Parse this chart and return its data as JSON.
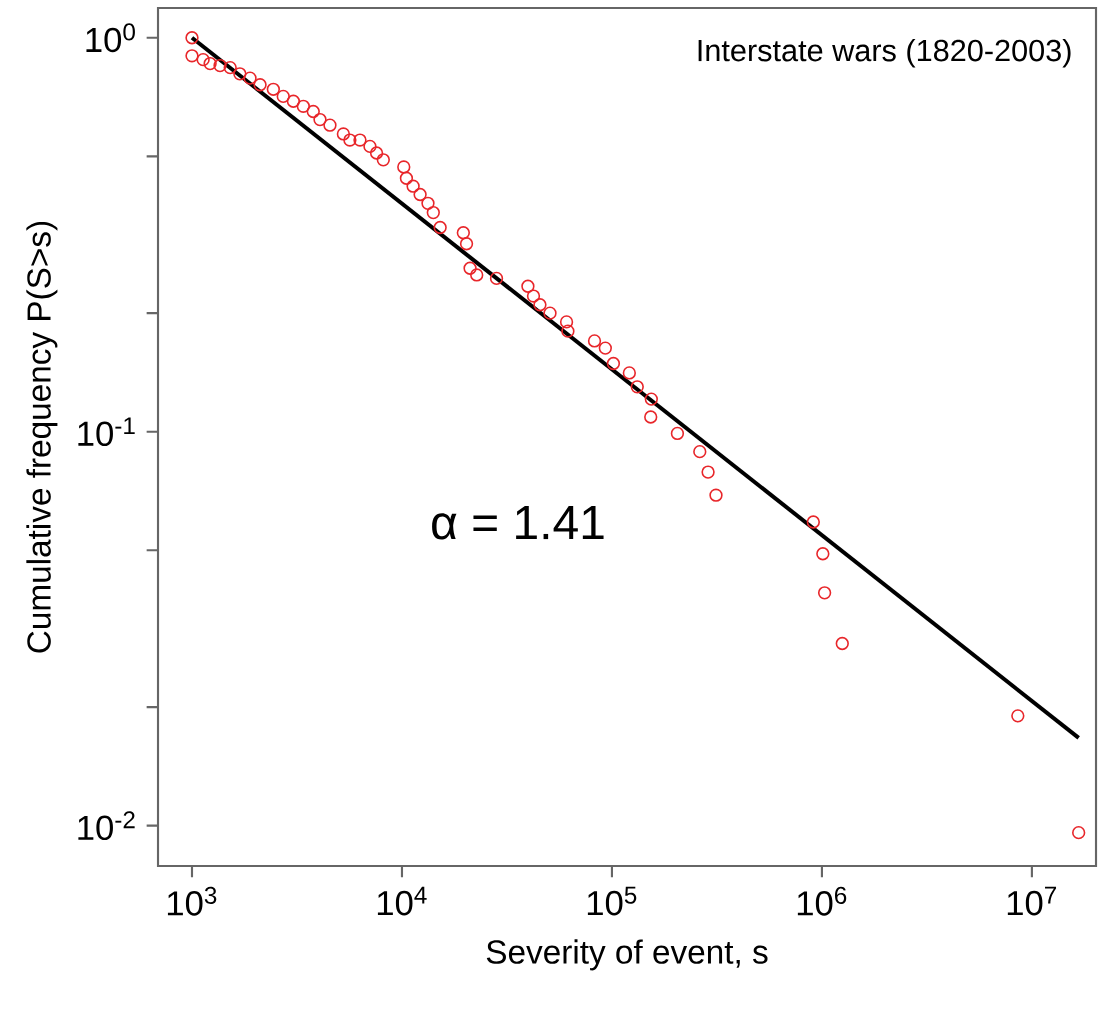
{
  "chart_data": {
    "type": "scatter",
    "xlabel": "Severity of event, s",
    "ylabel": "Cumulative frequency P(S>s)",
    "annotations": [
      "Interstate wars (1820-2003)",
      "α = 1.41"
    ],
    "log": "xy",
    "grid": false,
    "xlim": [
      689,
      20200000
    ],
    "ylim": [
      0.0079,
      1.19
    ],
    "xticks": [
      {
        "value": 1000,
        "label": "10$^{3}$"
      },
      {
        "value": 10000,
        "label": "10$^{4}$"
      },
      {
        "value": 100000,
        "label": "10$^{5}$"
      },
      {
        "value": 1000000,
        "label": "10$^{6}$"
      },
      {
        "value": 10000000,
        "label": "10$^{7}$"
      }
    ],
    "yticks": [
      {
        "value": 0.01,
        "label": "10$^{-2}$"
      },
      {
        "value": 0.02,
        "label": null
      },
      {
        "value": 0.05,
        "label": null
      },
      {
        "value": 0.1,
        "label": "10$^{-1}$"
      },
      {
        "value": 0.2,
        "label": null
      },
      {
        "value": 0.5,
        "label": null
      },
      {
        "value": 1,
        "label": "10$^{0}$"
      }
    ],
    "series": [
      {
        "color": "#e8262a",
        "marker": "circle",
        "x": [
          1000,
          1000,
          1130,
          1220,
          1360,
          1520,
          1690,
          1890,
          2110,
          2440,
          2720,
          3040,
          3390,
          3780,
          4070,
          4540,
          5260,
          5650,
          6310,
          7040,
          7570,
          8150,
          10200,
          10500,
          11300,
          12200,
          13300,
          14100,
          15200,
          19600,
          20300,
          21100,
          22700,
          28200,
          39800,
          42300,
          45400,
          50700,
          60800,
          61700,
          82600,
          93000,
          101600,
          121000,
          132000,
          154000,
          153000,
          205000,
          262000,
          287000,
          313000,
          910000,
          1010000,
          1030000,
          1250000,
          8570000,
          16700000
        ],
        "values": [
          1.0,
          0.9,
          0.88,
          0.86,
          0.85,
          0.84,
          0.81,
          0.79,
          0.76,
          0.74,
          0.71,
          0.69,
          0.67,
          0.65,
          0.62,
          0.6,
          0.57,
          0.55,
          0.55,
          0.53,
          0.51,
          0.49,
          0.47,
          0.44,
          0.42,
          0.4,
          0.38,
          0.36,
          0.33,
          0.32,
          0.3,
          0.26,
          0.25,
          0.245,
          0.234,
          0.221,
          0.21,
          0.2,
          0.19,
          0.18,
          0.17,
          0.163,
          0.149,
          0.141,
          0.13,
          0.121,
          0.109,
          0.099,
          0.089,
          0.079,
          0.069,
          0.059,
          0.049,
          0.039,
          0.029,
          0.019,
          0.0096
        ]
      },
      {
        "type": "line",
        "color": "#000000",
        "marker": "none",
        "line_style": "solid",
        "x": [
          1000,
          16700000
        ],
        "values": [
          1.0,
          0.0167
        ]
      }
    ]
  }
}
